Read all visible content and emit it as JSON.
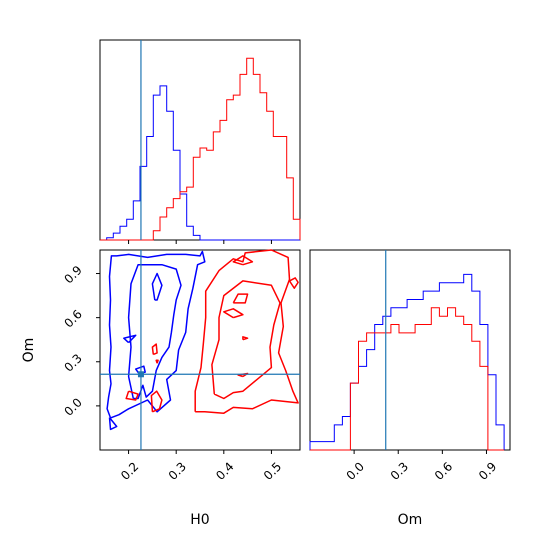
{
  "chart_data": {
    "type": "corner",
    "parameters": [
      "H0",
      "Om"
    ],
    "truth": {
      "H0": 0.226,
      "Om": 0.215
    },
    "colors": {
      "blue": "#0000ff",
      "red": "#ff0000",
      "truth": "#1f77b4"
    },
    "axes": {
      "H0": {
        "label": "H0",
        "range": [
          0.14,
          0.56
        ],
        "ticks": [
          "0.2",
          "0.3",
          "0.4",
          "0.5"
        ],
        "tick_values": [
          0.2,
          0.3,
          0.4,
          0.5
        ]
      },
      "Om": {
        "label": "Om",
        "range": [
          -0.3,
          1.06
        ],
        "ticks": [
          "0.0",
          "0.3",
          "0.6",
          "0.9"
        ],
        "tick_values": [
          0.0,
          0.3,
          0.6,
          0.9
        ]
      }
    },
    "hist_H0": {
      "bin_edges": [
        0.14,
        0.154,
        0.168,
        0.182,
        0.196,
        0.21,
        0.224,
        0.238,
        0.252,
        0.266,
        0.28,
        0.294,
        0.308,
        0.322,
        0.336,
        0.35,
        0.364,
        0.378,
        0.392,
        0.406,
        0.42,
        0.434,
        0.448,
        0.462,
        0.476,
        0.49,
        0.504,
        0.518,
        0.532,
        0.546,
        0.56
      ],
      "blue": [
        0,
        1,
        3,
        6,
        9,
        17,
        32,
        45,
        63,
        67,
        56,
        39,
        20,
        6,
        2,
        0,
        0,
        0,
        0,
        0,
        0,
        0,
        0,
        0,
        0,
        0,
        0,
        0,
        0,
        0
      ],
      "red": [
        0,
        0,
        0,
        0,
        0,
        0,
        0,
        0,
        4,
        10,
        14,
        18,
        21,
        23,
        36,
        40,
        39,
        47,
        52,
        61,
        63,
        72,
        79,
        72,
        64,
        56,
        45,
        45,
        27,
        9
      ],
      "ymax": 80
    },
    "hist_Om": {
      "bin_edges": [
        -0.3,
        -0.245,
        -0.19,
        -0.135,
        -0.08,
        -0.025,
        0.03,
        0.085,
        0.14,
        0.195,
        0.25,
        0.305,
        0.36,
        0.415,
        0.47,
        0.525,
        0.58,
        0.635,
        0.69,
        0.745,
        0.8,
        0.855,
        0.91,
        0.965,
        1.02
      ],
      "blue": [
        1,
        1,
        1,
        3,
        4,
        8,
        10,
        12,
        15,
        16,
        17,
        17,
        18,
        18,
        19,
        19,
        20,
        20,
        20,
        21,
        19,
        15,
        9,
        3
      ],
      "red": [
        0,
        0,
        0,
        0,
        0,
        8,
        13,
        14,
        14,
        14,
        15,
        14,
        14,
        15,
        15,
        17,
        16,
        17,
        16,
        15,
        13,
        10,
        0,
        0
      ],
      "ymax": 22
    },
    "contours": {
      "blue": [
        [
          [
            0.162,
            -0.082
          ],
          [
            0.155,
            -0.02
          ],
          [
            0.158,
            0.06
          ],
          [
            0.163,
            0.15
          ],
          [
            0.16,
            0.24
          ],
          [
            0.163,
            0.4
          ],
          [
            0.16,
            0.55
          ],
          [
            0.162,
            0.72
          ],
          [
            0.16,
            0.88
          ],
          [
            0.164,
            1.02
          ],
          [
            0.175,
            1.02
          ],
          [
            0.2,
            1.03
          ],
          [
            0.24,
            1.01
          ],
          [
            0.28,
            1.03
          ],
          [
            0.32,
            1.03
          ],
          [
            0.35,
            1.02
          ],
          [
            0.355,
            1.05
          ],
          [
            0.36,
            0.98
          ],
          [
            0.345,
            0.96
          ],
          [
            0.335,
            0.8
          ],
          [
            0.325,
            0.66
          ],
          [
            0.32,
            0.5
          ],
          [
            0.305,
            0.38
          ],
          [
            0.3,
            0.24
          ],
          [
            0.28,
            0.18
          ],
          [
            0.288,
            0.04
          ],
          [
            0.26,
            -0.04
          ],
          [
            0.24,
            0.04
          ],
          [
            0.2,
            -0.02
          ],
          [
            0.18,
            -0.06
          ],
          [
            0.162,
            -0.082
          ]
        ],
        [
          [
            0.21,
            0.05
          ],
          [
            0.2,
            0.2
          ],
          [
            0.205,
            0.4
          ],
          [
            0.2,
            0.6
          ],
          [
            0.205,
            0.83
          ],
          [
            0.22,
            0.96
          ],
          [
            0.27,
            0.96
          ],
          [
            0.3,
            0.93
          ],
          [
            0.31,
            0.82
          ],
          [
            0.3,
            0.72
          ],
          [
            0.295,
            0.62
          ],
          [
            0.29,
            0.5
          ],
          [
            0.285,
            0.4
          ],
          [
            0.27,
            0.33
          ],
          [
            0.258,
            0.24
          ],
          [
            0.25,
            0.1
          ],
          [
            0.237,
            0.06
          ],
          [
            0.23,
            0.14
          ],
          [
            0.22,
            0.05
          ],
          [
            0.21,
            0.05
          ]
        ],
        [
          [
            0.255,
            0.72
          ],
          [
            0.25,
            0.83
          ],
          [
            0.26,
            0.9
          ],
          [
            0.27,
            0.82
          ],
          [
            0.26,
            0.72
          ],
          [
            0.255,
            0.72
          ]
        ],
        [
          [
            0.2,
            0.43
          ],
          [
            0.19,
            0.46
          ],
          [
            0.215,
            0.48
          ],
          [
            0.2,
            0.43
          ]
        ],
        [
          [
            0.222,
            0.22
          ],
          [
            0.215,
            0.25
          ],
          [
            0.232,
            0.27
          ],
          [
            0.235,
            0.23
          ],
          [
            0.222,
            0.22
          ]
        ],
        [
          [
            0.16,
            -0.08
          ],
          [
            0.162,
            -0.16
          ],
          [
            0.175,
            -0.14
          ],
          [
            0.16,
            -0.08
          ]
        ]
      ],
      "red": [
        [
          [
            0.34,
            -0.04
          ],
          [
            0.34,
            0.1
          ],
          [
            0.352,
            0.26
          ],
          [
            0.357,
            0.42
          ],
          [
            0.362,
            0.6
          ],
          [
            0.362,
            0.78
          ],
          [
            0.39,
            0.92
          ],
          [
            0.42,
            1.0
          ],
          [
            0.44,
            0.98
          ],
          [
            0.445,
            1.04
          ],
          [
            0.5,
            1.06
          ],
          [
            0.535,
            1.01
          ],
          [
            0.538,
            0.86
          ],
          [
            0.52,
            0.7
          ],
          [
            0.525,
            0.54
          ],
          [
            0.515,
            0.36
          ],
          [
            0.53,
            0.24
          ],
          [
            0.545,
            0.1
          ],
          [
            0.556,
            0.02
          ],
          [
            0.5,
            0.04
          ],
          [
            0.46,
            -0.02
          ],
          [
            0.42,
            -0.01
          ],
          [
            0.4,
            -0.05
          ],
          [
            0.36,
            -0.04
          ],
          [
            0.34,
            -0.04
          ]
        ],
        [
          [
            0.38,
            0.08
          ],
          [
            0.375,
            0.28
          ],
          [
            0.39,
            0.45
          ],
          [
            0.39,
            0.6
          ],
          [
            0.4,
            0.75
          ],
          [
            0.44,
            0.85
          ],
          [
            0.5,
            0.82
          ],
          [
            0.518,
            0.7
          ],
          [
            0.505,
            0.55
          ],
          [
            0.497,
            0.4
          ],
          [
            0.5,
            0.26
          ],
          [
            0.47,
            0.18
          ],
          [
            0.44,
            0.1
          ],
          [
            0.42,
            0.09
          ],
          [
            0.4,
            0.05
          ],
          [
            0.38,
            0.08
          ]
        ],
        [
          [
            0.42,
            0.7
          ],
          [
            0.43,
            0.76
          ],
          [
            0.45,
            0.76
          ],
          [
            0.445,
            0.7
          ],
          [
            0.42,
            0.7
          ]
        ],
        [
          [
            0.42,
            0.6
          ],
          [
            0.4,
            0.64
          ],
          [
            0.42,
            0.66
          ],
          [
            0.44,
            0.62
          ],
          [
            0.42,
            0.6
          ]
        ],
        [
          [
            0.44,
            0.96
          ],
          [
            0.42,
            0.98
          ],
          [
            0.44,
            1.02
          ],
          [
            0.46,
            0.98
          ],
          [
            0.44,
            0.96
          ]
        ],
        [
          [
            0.538,
            0.85
          ],
          [
            0.548,
            0.8
          ],
          [
            0.556,
            0.84
          ],
          [
            0.55,
            0.87
          ],
          [
            0.538,
            0.85
          ]
        ],
        [
          [
            0.25,
            -0.04
          ],
          [
            0.248,
            0.07
          ],
          [
            0.259,
            0.1
          ],
          [
            0.27,
            0.04
          ],
          [
            0.265,
            -0.02
          ],
          [
            0.25,
            -0.04
          ]
        ],
        [
          [
            0.2,
            0.1
          ],
          [
            0.195,
            0.05
          ],
          [
            0.215,
            0.04
          ],
          [
            0.22,
            0.08
          ],
          [
            0.2,
            0.1
          ]
        ],
        [
          [
            0.252,
            0.35
          ],
          [
            0.25,
            0.4
          ],
          [
            0.258,
            0.42
          ],
          [
            0.26,
            0.36
          ],
          [
            0.252,
            0.35
          ]
        ],
        [
          [
            0.26,
            0.29
          ],
          [
            0.258,
            0.31
          ],
          [
            0.262,
            0.31
          ],
          [
            0.26,
            0.29
          ]
        ],
        [
          [
            0.44,
            0.2
          ],
          [
            0.43,
            0.21
          ],
          [
            0.45,
            0.22
          ],
          [
            0.44,
            0.2
          ]
        ],
        [
          [
            0.44,
            0.45
          ],
          [
            0.44,
            0.47
          ],
          [
            0.45,
            0.46
          ],
          [
            0.44,
            0.45
          ]
        ]
      ]
    }
  }
}
